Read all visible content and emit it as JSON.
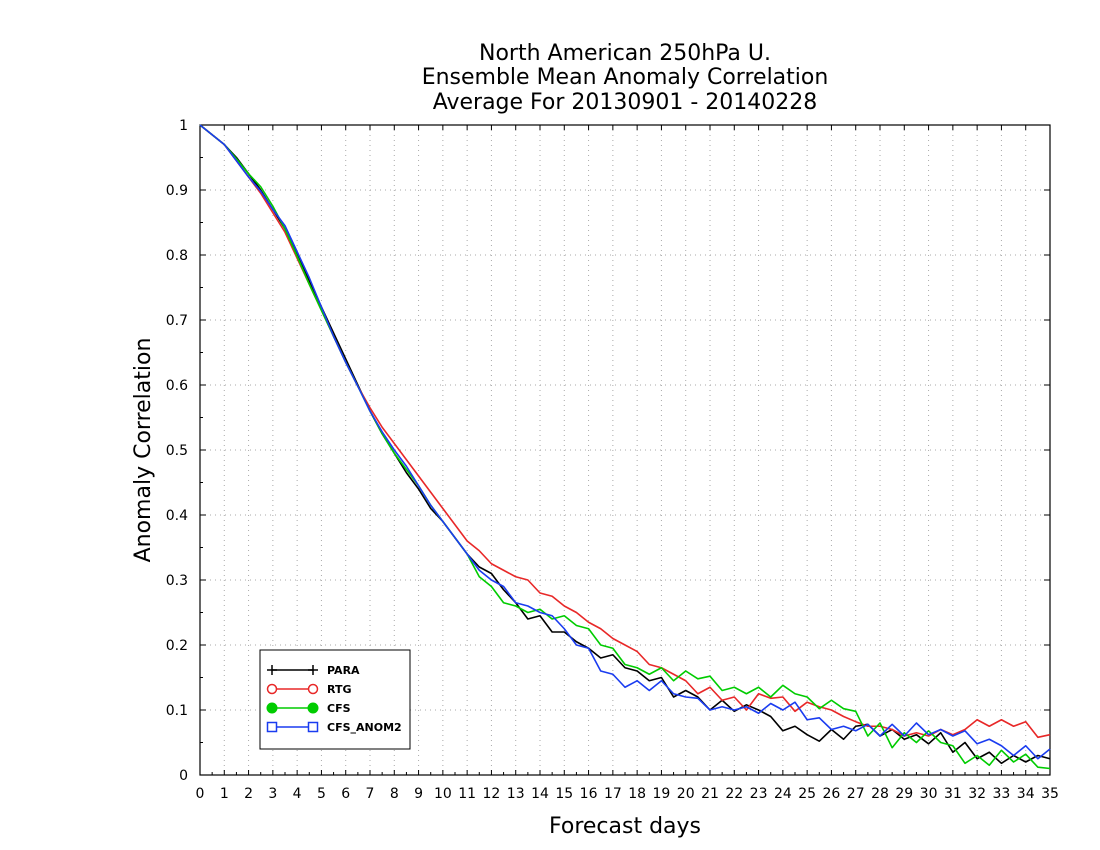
{
  "chart_data": {
    "type": "line",
    "title": [
      "North American 250hPa U.",
      "Ensemble Mean Anomaly Correlation",
      "Average For 20130901 - 20140228"
    ],
    "xlabel": "Forecast days",
    "ylabel": "Anomaly Correlation",
    "xlim": [
      0,
      35
    ],
    "ylim": [
      0,
      1
    ],
    "grid": true,
    "legend_position": "bottom-left",
    "x_ticks": [
      "0",
      "1",
      "2",
      "3",
      "4",
      "5",
      "6",
      "7",
      "8",
      "9",
      "10",
      "11",
      "12",
      "13",
      "14",
      "15",
      "16",
      "17",
      "18",
      "19",
      "20",
      "21",
      "22",
      "23",
      "24",
      "25",
      "26",
      "27",
      "28",
      "29",
      "30",
      "31",
      "32",
      "33",
      "34",
      "35"
    ],
    "y_ticks": [
      "0",
      "0.1",
      "0.2",
      "0.3",
      "0.4",
      "0.5",
      "0.6",
      "0.7",
      "0.8",
      "0.9",
      "1"
    ],
    "x": [
      0,
      0.5,
      1,
      1.5,
      2,
      2.5,
      3,
      3.5,
      4,
      4.5,
      5,
      5.5,
      6,
      6.5,
      7,
      7.5,
      8,
      8.5,
      9,
      9.5,
      10,
      10.5,
      11,
      11.5,
      12,
      12.5,
      13,
      13.5,
      14,
      14.5,
      15,
      15.5,
      16,
      16.5,
      17,
      17.5,
      18,
      18.5,
      19,
      19.5,
      20,
      20.5,
      21,
      21.5,
      22,
      22.5,
      23,
      23.5,
      24,
      24.5,
      25,
      25.5,
      26,
      26.5,
      27,
      27.5,
      28,
      28.5,
      29,
      29.5,
      30,
      30.5,
      31,
      31.5,
      32,
      32.5,
      33,
      33.5,
      34,
      34.5,
      35
    ],
    "series": [
      {
        "name": "PARA",
        "color": "#000000",
        "marker": "plus",
        "values": [
          1.0,
          0.985,
          0.97,
          0.95,
          0.925,
          0.9,
          0.87,
          0.84,
          0.8,
          0.76,
          0.72,
          0.68,
          0.64,
          0.6,
          0.56,
          0.525,
          0.495,
          0.465,
          0.44,
          0.41,
          0.39,
          0.365,
          0.34,
          0.32,
          0.31,
          0.285,
          0.265,
          0.24,
          0.245,
          0.22,
          0.22,
          0.205,
          0.195,
          0.18,
          0.185,
          0.165,
          0.16,
          0.145,
          0.15,
          0.12,
          0.13,
          0.12,
          0.1,
          0.115,
          0.098,
          0.108,
          0.1,
          0.09,
          0.068,
          0.075,
          0.062,
          0.052,
          0.07,
          0.055,
          0.075,
          0.078,
          0.06,
          0.07,
          0.055,
          0.062,
          0.048,
          0.065,
          0.035,
          0.05,
          0.025,
          0.035,
          0.018,
          0.03,
          0.02,
          0.03,
          0.025
        ]
      },
      {
        "name": "RTG",
        "color": "#e82828",
        "marker": "circle-open",
        "values": [
          1.0,
          0.985,
          0.97,
          0.945,
          0.92,
          0.895,
          0.865,
          0.835,
          0.795,
          0.755,
          0.715,
          0.675,
          0.635,
          0.598,
          0.565,
          0.535,
          0.51,
          0.485,
          0.46,
          0.435,
          0.41,
          0.385,
          0.36,
          0.345,
          0.325,
          0.315,
          0.305,
          0.3,
          0.28,
          0.275,
          0.26,
          0.25,
          0.235,
          0.225,
          0.21,
          0.2,
          0.19,
          0.17,
          0.165,
          0.155,
          0.145,
          0.125,
          0.135,
          0.115,
          0.12,
          0.1,
          0.125,
          0.118,
          0.12,
          0.098,
          0.112,
          0.105,
          0.1,
          0.09,
          0.082,
          0.075,
          0.075,
          0.07,
          0.06,
          0.065,
          0.06,
          0.07,
          0.062,
          0.07,
          0.085,
          0.075,
          0.085,
          0.075,
          0.082,
          0.058,
          0.062
        ]
      },
      {
        "name": "CFS",
        "color": "#00cc00",
        "marker": "circle-filled",
        "values": [
          1.0,
          0.985,
          0.97,
          0.948,
          0.925,
          0.905,
          0.875,
          0.84,
          0.798,
          0.755,
          0.715,
          0.675,
          0.635,
          0.598,
          0.56,
          0.525,
          0.495,
          0.47,
          0.445,
          0.415,
          0.39,
          0.365,
          0.34,
          0.305,
          0.29,
          0.265,
          0.26,
          0.25,
          0.255,
          0.24,
          0.245,
          0.23,
          0.225,
          0.2,
          0.195,
          0.17,
          0.165,
          0.155,
          0.165,
          0.145,
          0.16,
          0.148,
          0.152,
          0.13,
          0.135,
          0.125,
          0.135,
          0.12,
          0.138,
          0.125,
          0.12,
          0.102,
          0.115,
          0.102,
          0.098,
          0.06,
          0.08,
          0.042,
          0.065,
          0.05,
          0.068,
          0.05,
          0.045,
          0.018,
          0.03,
          0.015,
          0.038,
          0.02,
          0.032,
          0.012,
          0.01
        ]
      },
      {
        "name": "CFS_ANOM2",
        "color": "#1a3cf0",
        "marker": "square-open",
        "values": [
          1.0,
          0.985,
          0.97,
          0.945,
          0.92,
          0.898,
          0.87,
          0.845,
          0.805,
          0.765,
          0.72,
          0.675,
          0.635,
          0.598,
          0.56,
          0.528,
          0.5,
          0.475,
          0.445,
          0.415,
          0.39,
          0.365,
          0.34,
          0.315,
          0.3,
          0.29,
          0.265,
          0.26,
          0.25,
          0.245,
          0.225,
          0.2,
          0.195,
          0.16,
          0.155,
          0.135,
          0.145,
          0.13,
          0.145,
          0.125,
          0.12,
          0.118,
          0.1,
          0.105,
          0.1,
          0.105,
          0.095,
          0.11,
          0.1,
          0.112,
          0.085,
          0.088,
          0.07,
          0.075,
          0.068,
          0.078,
          0.06,
          0.078,
          0.06,
          0.08,
          0.062,
          0.07,
          0.06,
          0.068,
          0.048,
          0.055,
          0.045,
          0.03,
          0.045,
          0.025,
          0.04
        ]
      }
    ]
  }
}
